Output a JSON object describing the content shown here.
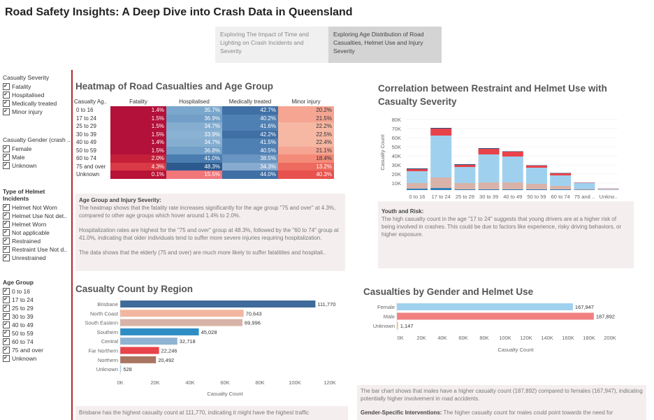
{
  "title": "Road Safety Insights: A Deep Dive into Crash Data in Queensland",
  "tabs": [
    {
      "label": "Exploring The Impact of Time and Lighting on Crash Incidents and Severity"
    },
    {
      "label": "Exploring Age Distribution of Road Casualties, Helmet Use and Injury Severity"
    }
  ],
  "filters": {
    "severity": {
      "title": "Casualty Severity",
      "items": [
        "Fatality",
        "Hospitalised",
        "Medically treated",
        "Minor injury"
      ]
    },
    "gender": {
      "title": "Casualty Gender (crash ..",
      "items": [
        "Female",
        "Male",
        "Unknown"
      ]
    },
    "helmet": {
      "title": "Type of Helmet Incidents",
      "items": [
        "Helmet Not Worn",
        "Helmet Use Not det..",
        "Helmet Worn",
        "Not applicable",
        "Restrained",
        "Restraint Use Not d..",
        "Unrestrained"
      ]
    },
    "age": {
      "title": "Age Group",
      "items": [
        "0 to 16",
        "17 to 24",
        "25 to 29",
        "30 to 39",
        "40 to 49",
        "50 to 59",
        "60 to 74",
        "75 and over",
        "Unknown"
      ]
    }
  },
  "heatmap": {
    "title": "Heatmap of Road Casualties and Age Group",
    "row_header": "Casualty Ag..",
    "columns": [
      "Fatality",
      "Hospitalised",
      "Medically treated",
      "Minor injury"
    ],
    "rows": [
      {
        "label": "0 to 16",
        "values": [
          "1.4%",
          "35.7%",
          "42.7%",
          "20.2%"
        ]
      },
      {
        "label": "17 to 24",
        "values": [
          "1.5%",
          "36.9%",
          "40.2%",
          "21.5%"
        ]
      },
      {
        "label": "25 to 29",
        "values": [
          "1.5%",
          "34.7%",
          "41.6%",
          "22.2%"
        ]
      },
      {
        "label": "30 to 39",
        "values": [
          "1.5%",
          "33.9%",
          "42.2%",
          "22.5%"
        ]
      },
      {
        "label": "40 to 49",
        "values": [
          "1.4%",
          "34.7%",
          "41.5%",
          "22.4%"
        ]
      },
      {
        "label": "50 to 59",
        "values": [
          "1.5%",
          "36.8%",
          "40.5%",
          "21.1%"
        ]
      },
      {
        "label": "60 to 74",
        "values": [
          "2.0%",
          "41.0%",
          "38.5%",
          "18.4%"
        ]
      },
      {
        "label": "75 and over",
        "values": [
          "4.3%",
          "48.3%",
          "34.3%",
          "13.2%"
        ]
      },
      {
        "label": "Unknown",
        "values": [
          "0.1%",
          "15.5%",
          "44.0%",
          "40.3%"
        ]
      }
    ]
  },
  "heatmap_note": {
    "heading": "Age Group and Injury Severity:",
    "p1": "The heatmap shows that the fatality rate increases significantly for the age group \"75 and over\" at 4.3%, compared to other age groups which hover around 1.4% to 2.0%.",
    "p2": "Hospitalization rates are highest for the \"75 and over\" group at 48.3%, followed by the \"60 to 74\" group at 41.0%, indicating that older individuals tend to suffer more severe injuries requiring hospitalization.",
    "p3": "The data shows that the elderly (75 and over) are much more likely to suffer fatalitites and hospitali.."
  },
  "restraint_chart": {
    "title_line1": "Correlation between Restraint and Helmet Use with",
    "title_line2": "Casualty Severity",
    "ylabel": "Casualty Count",
    "ticks": [
      "80K",
      "70K",
      "60K",
      "50K",
      "40K",
      "30K",
      "20K",
      "10K"
    ],
    "categories": [
      "0 to 16",
      "17 to 24",
      "25 to 29",
      "30 to 39",
      "40 to 49",
      "50 to 59",
      "60 to 74",
      "75 and ..",
      "Unkno.."
    ],
    "colors": {
      "fatal": "#e8424b",
      "light_blue": "#9fd1ef",
      "pink": "#d9b3a9",
      "blue": "#2f7eb8",
      "navy": "#2a4d7a"
    }
  },
  "restraint_note": {
    "heading": "Youth and Risk:",
    "text": "The high casualty count in the age \"17 to 24\" suggests that young drivers are at a higher risk of being involved in crashes. This could be due to factors like experience, risky driving behaviors, or higher exposure."
  },
  "region_chart": {
    "title": "Casualty Count by Region",
    "xlabel": "Casualty Count",
    "ticks": [
      "0K",
      "20K",
      "40K",
      "60K",
      "80K",
      "100K",
      "120K"
    ],
    "bars": [
      {
        "label": "Brisbane",
        "value": "111,770",
        "color": "#3f6b9a"
      },
      {
        "label": "North Coast",
        "value": "70,643",
        "color": "#f2b6a0"
      },
      {
        "label": "South Eastern",
        "value": "69,996",
        "color": "#d8b3a7"
      },
      {
        "label": "Southern",
        "value": "45,028",
        "color": "#2e8dc4"
      },
      {
        "label": "Central",
        "value": "32,718",
        "color": "#8fb3d3"
      },
      {
        "label": "Far Northern",
        "value": "22,246",
        "color": "#e8424b"
      },
      {
        "label": "Northern",
        "value": "20,492",
        "color": "#a87560"
      },
      {
        "label": "Unknown",
        "value": "528",
        "color": "#9fd1ef"
      }
    ]
  },
  "region_note": {
    "text": "Brisbane has the highest casualty count at 111,770, indicating it might have the highest traffic"
  },
  "gender_chart": {
    "title": "Casualties by Gender and Helmet Use",
    "xlabel": "Casualty Count",
    "ticks": [
      "0K",
      "20K",
      "40K",
      "60K",
      "80K",
      "100K",
      "120K",
      "140K",
      "160K",
      "180K",
      "200K"
    ],
    "bars": [
      {
        "label": "Female",
        "value": "167,947",
        "color": "#9fd1ef"
      },
      {
        "label": "Male",
        "value": "187,892",
        "color": "#f08080"
      },
      {
        "label": "Unknown",
        "value": "1,147",
        "color": "#f2c27a"
      }
    ]
  },
  "gender_note": {
    "p1": "The bar chart shows that males have a higher casualty count (187,892) compared to females (167,947), indicating potentially higher involvement in road accidents.",
    "heading": "Gender-Specific Interventions:",
    "p2": " The higher casualty count for males could point towards the need for"
  }
}
